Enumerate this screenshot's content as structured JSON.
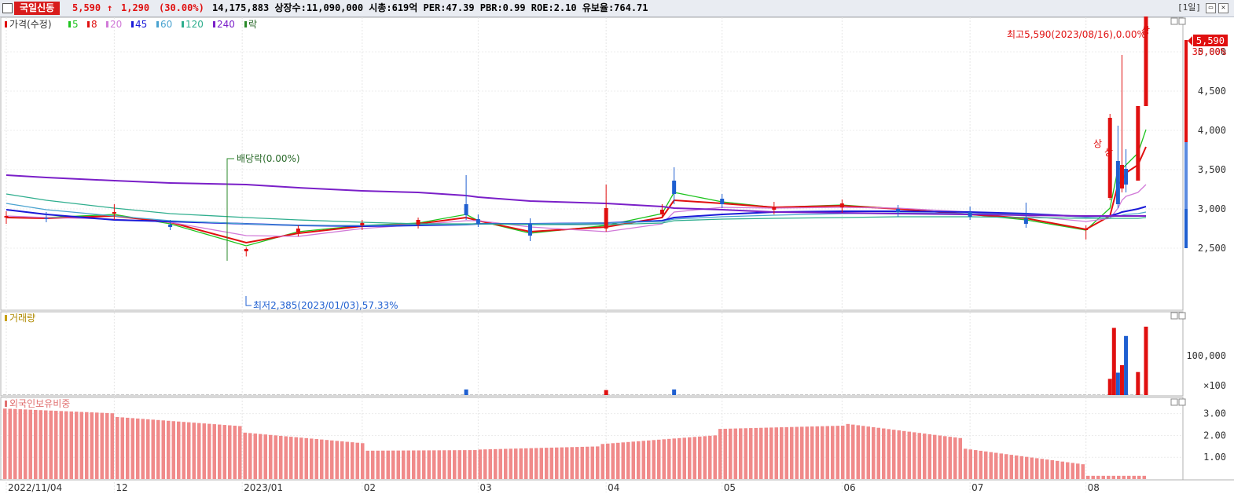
{
  "header": {
    "stock_name": "국일신동",
    "price": "5,590",
    "change_arrow": "↑",
    "change": "1,290",
    "change_pct": "(30.00%)",
    "stats": "14,175,883  상장수:11,090,000 시총:619억 PER:47.39 PBR:0.99 ROE:2.10 유보율:764.71",
    "period": "[1일]"
  },
  "legend": {
    "price_label": "가격(수정)",
    "ma": [
      {
        "label": "5",
        "color": "#1ec41e"
      },
      {
        "label": "8",
        "color": "#e01010"
      },
      {
        "label": "20",
        "color": "#d17ad8"
      },
      {
        "label": "45",
        "color": "#1a1ad8"
      },
      {
        "label": "60",
        "color": "#4aa3d0"
      },
      {
        "label": "120",
        "color": "#2fae8e"
      },
      {
        "label": "240",
        "color": "#7a1fc8"
      }
    ],
    "ex_label": "락",
    "volume_label": "거래량",
    "foreign_label": "외국인보유비중"
  },
  "annotations": {
    "high": "최고5,590(2023/08/16),0.00%",
    "low": "최저2,385(2023/01/03),57.33%",
    "dividend": "배당락(0.00%)",
    "limit_up": "상"
  },
  "axes": {
    "price_ticks": [
      "5,000",
      "4,500",
      "4,000",
      "3,500",
      "3,000",
      "2,500"
    ],
    "current_price_label": "5,590",
    "current_pct_label": "30.00%",
    "volume_ticks": [
      "100,000",
      "×100"
    ],
    "foreign_ticks": [
      "3.00",
      "2.00",
      "1.00"
    ],
    "x_labels": [
      "2022/11/04",
      "12",
      "2023/01",
      "02",
      "03",
      "04",
      "05",
      "06",
      "07",
      "08"
    ]
  },
  "colors": {
    "up": "#e01010",
    "down": "#1f5fd0",
    "foreign": "#f08a8a"
  },
  "chart_data": [
    {
      "type": "candlestick",
      "title": "가격(수정)",
      "ylim": [
        2300,
        5700
      ],
      "dates": [
        "2022-11-04",
        "2022-11-14",
        "2022-12-01",
        "2022-12-15",
        "2023-01-03",
        "2023-01-16",
        "2023-02-01",
        "2023-02-15",
        "2023-02-27",
        "2023-03-02",
        "2023-03-15",
        "2023-04-03",
        "2023-04-17",
        "2023-04-20",
        "2023-05-02",
        "2023-05-15",
        "2023-06-01",
        "2023-06-15",
        "2023-07-03",
        "2023-07-17",
        "2023-08-01",
        "2023-08-07",
        "2023-08-09",
        "2023-08-10",
        "2023-08-11",
        "2023-08-14",
        "2023-08-16"
      ],
      "open": [
        2880,
        2870,
        2930,
        2790,
        2450,
        2690,
        2780,
        2790,
        3050,
        2860,
        2800,
        2740,
        2920,
        3350,
        3120,
        2980,
        3010,
        2990,
        2950,
        2870,
        2720,
        3130,
        3600,
        3250,
        3500,
        3350,
        4300
      ],
      "high": [
        2960,
        2950,
        3050,
        2850,
        2500,
        2780,
        2850,
        2880,
        3420,
        2920,
        2870,
        3300,
        3050,
        3520,
        3180,
        3080,
        3110,
        3040,
        3020,
        3070,
        2780,
        4200,
        4050,
        4950,
        3750,
        4300,
        5590
      ],
      "low": [
        2800,
        2820,
        2850,
        2720,
        2385,
        2640,
        2720,
        2740,
        2850,
        2760,
        2580,
        2700,
        2880,
        3050,
        3000,
        2920,
        2940,
        2890,
        2850,
        2750,
        2600,
        3100,
        3000,
        3200,
        3200,
        3350,
        4300
      ],
      "close": [
        2900,
        2860,
        2950,
        2760,
        2480,
        2740,
        2810,
        2850,
        2910,
        2800,
        2650,
        3000,
        2980,
        3180,
        3050,
        3010,
        3060,
        2950,
        2890,
        2800,
        2740,
        4150,
        3050,
        3550,
        3300,
        4300,
        5590
      ],
      "ma": {
        "5": [
          2880,
          2880,
          2920,
          2800,
          2520,
          2700,
          2780,
          2810,
          2920,
          2840,
          2680,
          2780,
          2930,
          3200,
          3080,
          3010,
          3040,
          2990,
          2920,
          2850,
          2720,
          3000,
          3500,
          3500,
          3550,
          3700,
          4000
        ],
        "8": [
          2880,
          2870,
          2900,
          2820,
          2560,
          2680,
          2770,
          2800,
          2880,
          2840,
          2700,
          2760,
          2880,
          3100,
          3060,
          3010,
          3030,
          2990,
          2920,
          2870,
          2730,
          2900,
          3300,
          3350,
          3450,
          3550,
          3780
        ],
        "20": [
          2900,
          2880,
          2860,
          2820,
          2650,
          2640,
          2740,
          2790,
          2840,
          2840,
          2760,
          2700,
          2800,
          2950,
          3010,
          3000,
          3010,
          3000,
          2950,
          2900,
          2830,
          2870,
          3000,
          3100,
          3150,
          3200,
          3300
        ],
        "45": [
          2980,
          2920,
          2850,
          2830,
          2800,
          2780,
          2770,
          2780,
          2790,
          2800,
          2800,
          2810,
          2840,
          2880,
          2920,
          2950,
          2960,
          2960,
          2950,
          2930,
          2890,
          2900,
          2930,
          2950,
          2960,
          2990,
          3020
        ],
        "60": [
          3060,
          2980,
          2900,
          2840,
          2800,
          2780,
          2780,
          2790,
          2790,
          2800,
          2800,
          2810,
          2830,
          2860,
          2890,
          2910,
          2930,
          2940,
          2930,
          2920,
          2890,
          2890,
          2900,
          2910,
          2920,
          2930,
          2950
        ],
        "120": [
          3180,
          3100,
          3000,
          2930,
          2880,
          2850,
          2820,
          2800,
          2800,
          2800,
          2790,
          2790,
          2810,
          2840,
          2860,
          2870,
          2880,
          2890,
          2890,
          2880,
          2870,
          2870,
          2870,
          2870,
          2870,
          2870,
          2880
        ],
        "240": [
          3420,
          3390,
          3350,
          3320,
          3300,
          3260,
          3220,
          3200,
          3160,
          3140,
          3090,
          3060,
          3020,
          3000,
          2980,
          2950,
          2940,
          2930,
          2920,
          2910,
          2900,
          2900,
          2900,
          2900,
          2900,
          2900,
          2900
        ]
      }
    },
    {
      "type": "bar",
      "title": "거래량",
      "dates": [
        "2023-02-27",
        "2023-04-03",
        "2023-04-20",
        "2023-08-07",
        "2023-08-08",
        "2023-08-09",
        "2023-08-10",
        "2023-08-11",
        "2023-08-14",
        "2023-08-16"
      ],
      "values": [
        900,
        800,
        900,
        2600,
        10800,
        3600,
        4800,
        9500,
        3700,
        11000
      ],
      "unit": "×100"
    },
    {
      "type": "bar",
      "title": "외국인보유비중",
      "ylim": [
        0,
        3.6
      ],
      "x": [
        "2022-11",
        "2022-12",
        "2023-01",
        "2023-02",
        "2023-03",
        "2023-04",
        "2023-05",
        "2023-06",
        "2023-07",
        "2023-08"
      ],
      "values": [
        3.25,
        2.85,
        2.15,
        1.3,
        1.35,
        1.6,
        2.3,
        2.55,
        1.4,
        0.15
      ]
    }
  ]
}
